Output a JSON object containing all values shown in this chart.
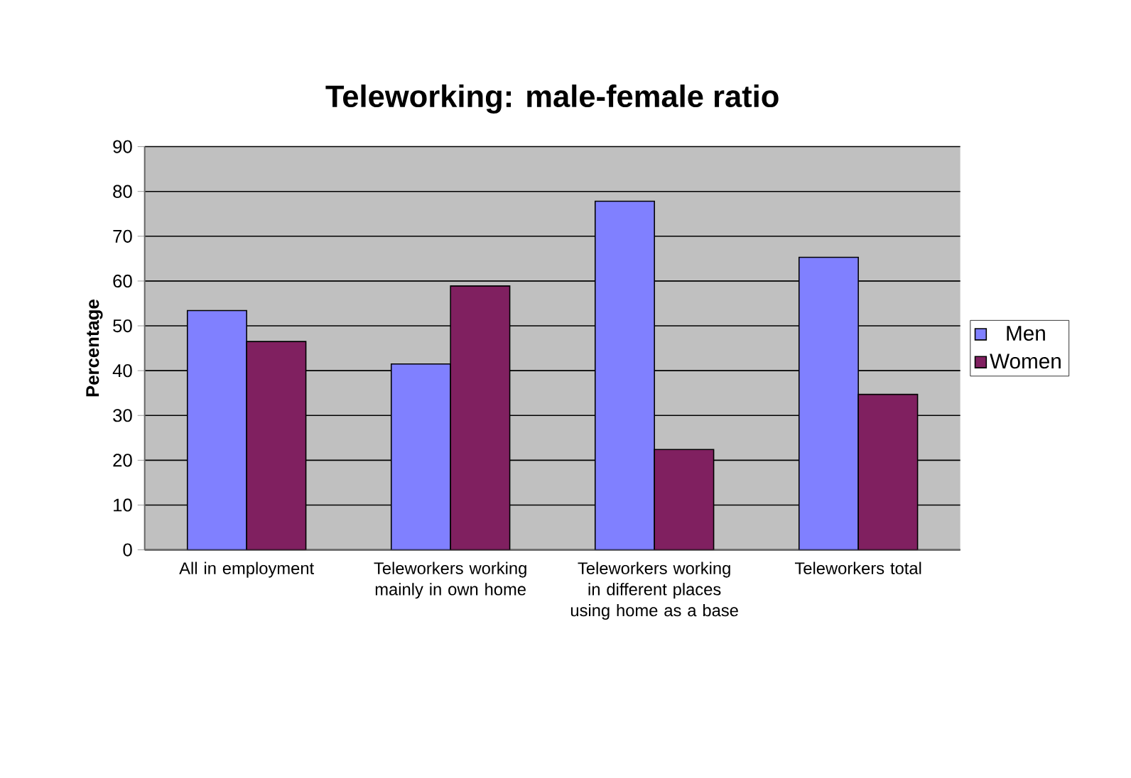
{
  "chart_data": {
    "type": "bar",
    "title": "Teleworking: male-female ratio",
    "ylabel": "Percentage",
    "categories": [
      "All in employment",
      "Teleworkers working mainly in own home",
      "Teleworkers working in different places using home as a base",
      "Teleworkers total"
    ],
    "series": [
      {
        "name": "Men",
        "color": "#8080ff",
        "values": [
          53.4,
          41.5,
          77.8,
          65.3
        ]
      },
      {
        "name": "Women",
        "color": "#802060",
        "values": [
          46.5,
          58.9,
          22.4,
          34.7
        ]
      }
    ],
    "ylim": [
      0,
      90
    ],
    "yticks": [
      0,
      10,
      20,
      30,
      40,
      50,
      60,
      70,
      80,
      90
    ],
    "grid": "y",
    "legend": "right"
  }
}
